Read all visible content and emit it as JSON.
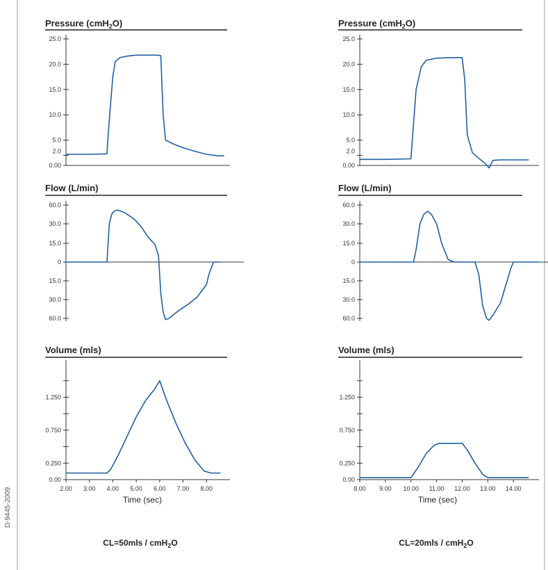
{
  "side_code": "D-9445-2009",
  "colors": {
    "trace": "#1f5fa3",
    "axis": "#333333"
  },
  "columns": [
    {
      "footer_pre": "CL=50mls / cmH",
      "footer_sub": "2",
      "footer_post": "O",
      "time_label": "Time (sec)"
    },
    {
      "footer_pre": "CL=20mls / cmH",
      "footer_sub": "2",
      "footer_post": "O",
      "time_label": "Time (sec)"
    }
  ],
  "chart_data": [
    {
      "type": "line",
      "column": 0,
      "row": 0,
      "title_pre": "Pressure (cmH",
      "title_sub": "2",
      "title_post": "O)",
      "xlim": [
        2.0,
        9.0
      ],
      "ylim": [
        0,
        25
      ],
      "yticks": [
        {
          "v": 25,
          "label": "25.0"
        },
        {
          "v": 20,
          "label": "20.0"
        },
        {
          "v": 15,
          "label": "15.0"
        },
        {
          "v": 10,
          "label": "10.0"
        },
        {
          "v": 5,
          "label": "5.0"
        },
        {
          "v": 2,
          "label": "2.0"
        },
        {
          "v": 0,
          "label": "0.00"
        }
      ],
      "zero_line": false,
      "x": [
        2.0,
        3.0,
        3.75,
        3.8,
        3.9,
        4.0,
        4.1,
        4.3,
        4.6,
        5.0,
        5.5,
        5.9,
        6.05,
        6.15,
        6.25,
        6.6,
        7.0,
        7.5,
        8.0,
        8.5,
        8.75
      ],
      "y": [
        2.2,
        2.2,
        2.3,
        6.0,
        12.0,
        17.5,
        20.5,
        21.3,
        21.6,
        21.8,
        21.8,
        21.8,
        21.7,
        10.0,
        5.0,
        4.2,
        3.5,
        2.8,
        2.2,
        1.9,
        1.9
      ]
    },
    {
      "type": "line",
      "column": 0,
      "row": 1,
      "title_pre": "Flow (L/min)",
      "title_sub": "",
      "title_post": "",
      "xlim": [
        2.0,
        9.0
      ],
      "ylim": [
        -60,
        60
      ],
      "yticks": [
        {
          "v": 60,
          "label": "60.0"
        },
        {
          "v": 30,
          "label": "30.0"
        },
        {
          "v": 15,
          "label": "15.0"
        },
        {
          "v": 0,
          "label": "0"
        },
        {
          "v": -15,
          "label": "15.0"
        },
        {
          "v": -30,
          "label": "30.0"
        },
        {
          "v": -60,
          "label": "60.0"
        }
      ],
      "zero_line": true,
      "x": [
        2.0,
        3.0,
        3.75,
        3.85,
        3.95,
        4.05,
        4.2,
        4.5,
        4.9,
        5.2,
        5.5,
        5.8,
        5.95,
        6.05,
        6.15,
        6.25,
        6.4,
        6.8,
        7.2,
        7.6,
        8.0,
        8.1,
        8.3,
        8.6
      ],
      "y": [
        0,
        0,
        0,
        30,
        45,
        50,
        52,
        48,
        38,
        28,
        20,
        14,
        5,
        -25,
        -50,
        -64,
        -60,
        -48,
        -38,
        -28,
        -18,
        -10,
        0,
        0
      ]
    },
    {
      "type": "line",
      "column": 0,
      "row": 2,
      "title_pre": "Volume (mls)",
      "title_sub": "",
      "title_post": "",
      "xlim": [
        2.0,
        9.0
      ],
      "ylim": [
        0,
        1.75
      ],
      "yticks": [
        {
          "v": 1.5,
          "label": ""
        },
        {
          "v": 1.25,
          "label": "1.250"
        },
        {
          "v": 1.0,
          "label": ""
        },
        {
          "v": 0.75,
          "label": "0.750"
        },
        {
          "v": 0.5,
          "label": ""
        },
        {
          "v": 0.25,
          "label": "0.250"
        },
        {
          "v": 0,
          "label": "0.00"
        }
      ],
      "xticks": [
        {
          "v": 2,
          "label": "2.00"
        },
        {
          "v": 3,
          "label": "3.00"
        },
        {
          "v": 4,
          "label": "4.00"
        },
        {
          "v": 5,
          "label": "5.00"
        },
        {
          "v": 6,
          "label": "6.00"
        },
        {
          "v": 7,
          "label": "7.00"
        },
        {
          "v": 8,
          "label": "8.00"
        }
      ],
      "zero_line": false,
      "x": [
        2.0,
        3.0,
        3.75,
        3.9,
        4.2,
        4.6,
        5.0,
        5.4,
        5.8,
        6.0,
        6.3,
        6.7,
        7.1,
        7.5,
        7.9,
        8.2,
        8.6
      ],
      "y": [
        0.1,
        0.1,
        0.1,
        0.15,
        0.35,
        0.65,
        0.95,
        1.2,
        1.38,
        1.5,
        1.2,
        0.85,
        0.55,
        0.3,
        0.13,
        0.1,
        0.1
      ]
    },
    {
      "type": "line",
      "column": 1,
      "row": 0,
      "title_pre": "Pressure (cmH",
      "title_sub": "2",
      "title_post": "O)",
      "xlim": [
        8.0,
        15.0
      ],
      "ylim": [
        0,
        25
      ],
      "yticks": [
        {
          "v": 25,
          "label": "25.0"
        },
        {
          "v": 20,
          "label": "20.0"
        },
        {
          "v": 15,
          "label": "15.0"
        },
        {
          "v": 10,
          "label": "10.0"
        },
        {
          "v": 5,
          "label": "5.0"
        },
        {
          "v": 2,
          "label": "2.0"
        },
        {
          "v": 0,
          "label": "0.00"
        }
      ],
      "zero_line": false,
      "x": [
        8.0,
        9.0,
        10.0,
        10.05,
        10.2,
        10.4,
        10.6,
        11.0,
        11.5,
        12.0,
        12.1,
        12.2,
        12.4,
        12.7,
        12.9,
        13.05,
        13.2,
        13.5,
        14.0,
        14.6
      ],
      "y": [
        1.2,
        1.2,
        1.3,
        5.0,
        15.0,
        19.5,
        20.8,
        21.2,
        21.3,
        21.3,
        17.0,
        6.0,
        2.5,
        1.2,
        0.4,
        -0.5,
        1.0,
        1.1,
        1.1,
        1.1
      ]
    },
    {
      "type": "line",
      "column": 1,
      "row": 1,
      "title_pre": "Flow (L/min)",
      "title_sub": "",
      "title_post": "",
      "xlim": [
        8.0,
        15.0
      ],
      "ylim": [
        -60,
        60
      ],
      "yticks": [
        {
          "v": 60,
          "label": "60.0"
        },
        {
          "v": 30,
          "label": "30.0"
        },
        {
          "v": 15,
          "label": "15.0"
        },
        {
          "v": 0,
          "label": "0"
        },
        {
          "v": -15,
          "label": "15.0"
        },
        {
          "v": -30,
          "label": "30.0"
        },
        {
          "v": -60,
          "label": "60.0"
        }
      ],
      "zero_line": true,
      "x": [
        8.0,
        9.0,
        10.1,
        10.2,
        10.35,
        10.5,
        10.65,
        10.8,
        11.0,
        11.2,
        11.45,
        11.7,
        12.0,
        12.5,
        12.65,
        12.8,
        12.95,
        13.05,
        13.2,
        13.5,
        13.9,
        14.0,
        14.4,
        15.0
      ],
      "y": [
        0,
        0,
        0,
        10,
        30,
        45,
        50,
        45,
        30,
        15,
        2,
        0,
        0,
        0,
        -10,
        -40,
        -60,
        -66,
        -55,
        -35,
        -5,
        0,
        0,
        0
      ]
    },
    {
      "type": "line",
      "column": 1,
      "row": 2,
      "title_pre": "Volume (mls)",
      "title_sub": "",
      "title_post": "",
      "xlim": [
        8.0,
        15.0
      ],
      "ylim": [
        0,
        1.75
      ],
      "yticks": [
        {
          "v": 1.5,
          "label": ""
        },
        {
          "v": 1.25,
          "label": "1.250"
        },
        {
          "v": 1.0,
          "label": ""
        },
        {
          "v": 0.75,
          "label": "0.750"
        },
        {
          "v": 0.5,
          "label": ""
        },
        {
          "v": 0.25,
          "label": "0.250"
        },
        {
          "v": 0,
          "label": "0.00"
        }
      ],
      "xticks": [
        {
          "v": 8,
          "label": "8.00"
        },
        {
          "v": 9,
          "label": "9.00"
        },
        {
          "v": 10,
          "label": "10.00"
        },
        {
          "v": 11,
          "label": "11.00"
        },
        {
          "v": 12,
          "label": "12.00"
        },
        {
          "v": 13,
          "label": "13.00"
        },
        {
          "v": 14,
          "label": "14.00"
        }
      ],
      "zero_line": false,
      "x": [
        8.0,
        9.0,
        10.0,
        10.3,
        10.6,
        10.9,
        11.1,
        11.5,
        12.0,
        12.2,
        12.5,
        12.8,
        13.0,
        13.3,
        14.0,
        14.6
      ],
      "y": [
        0.03,
        0.03,
        0.03,
        0.2,
        0.4,
        0.52,
        0.55,
        0.55,
        0.55,
        0.45,
        0.25,
        0.08,
        0.03,
        0.03,
        0.03,
        0.03
      ]
    }
  ]
}
